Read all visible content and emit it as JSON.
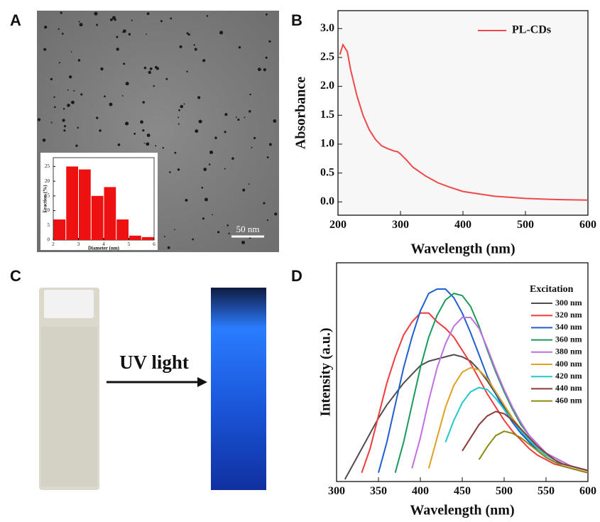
{
  "panel_labels": [
    "A",
    "B",
    "C",
    "D"
  ],
  "figure_texts": {
    "scale_bar": "50 nm",
    "arrow_label": "UV light"
  },
  "chart_data": [
    {
      "type": "histogram",
      "xlabel": "Diameter (nm)",
      "ylabel": "Fraction (%)",
      "bins": [
        2.0,
        2.5,
        3.0,
        3.5,
        4.0,
        4.5,
        5.0,
        5.5,
        6.0
      ],
      "values": [
        7,
        25,
        24,
        15,
        18,
        7,
        1.5,
        1
      ],
      "color": "#ee1111",
      "xlim": [
        2,
        6
      ],
      "xticks": [
        2,
        3,
        4,
        5,
        6
      ],
      "ylim": [
        0,
        28
      ],
      "yticks": [
        0,
        5,
        10,
        15,
        20,
        25
      ]
    },
    {
      "type": "line",
      "xlabel": "Wavelength (nm)",
      "ylabel": "Absorbance",
      "x": [
        203,
        208,
        215,
        220,
        230,
        240,
        250,
        260,
        270,
        280,
        290,
        295,
        300,
        310,
        320,
        340,
        360,
        380,
        400,
        450,
        500,
        550,
        600
      ],
      "series": [
        {
          "name": "PL-CDs",
          "color": "#f04848",
          "values": [
            2.55,
            2.72,
            2.6,
            2.3,
            1.85,
            1.5,
            1.25,
            1.08,
            0.97,
            0.92,
            0.88,
            0.87,
            0.83,
            0.72,
            0.6,
            0.45,
            0.33,
            0.25,
            0.18,
            0.1,
            0.06,
            0.04,
            0.03
          ]
        }
      ],
      "xlim": [
        200,
        600
      ],
      "xticks": [
        200,
        300,
        400,
        500,
        600
      ],
      "ylim": [
        -0.23,
        3.31
      ],
      "yticks": [
        {
          "value": 0,
          "label": "0.0"
        },
        0.5,
        {
          "value": 1,
          "label": "1.0"
        },
        1.5,
        {
          "value": 2,
          "label": "2.0"
        },
        2.5,
        {
          "value": 3,
          "label": "3.0"
        }
      ],
      "legend": "upper right"
    },
    {
      "type": "line",
      "xlabel": "Wavelength (nm)",
      "ylabel": "Intensity (a.u.)",
      "legend_title": "Excitation",
      "x": [
        310,
        320,
        330,
        340,
        350,
        360,
        370,
        380,
        390,
        400,
        410,
        420,
        430,
        440,
        450,
        460,
        470,
        480,
        490,
        500,
        510,
        520,
        530,
        540,
        550,
        560,
        570,
        580,
        590,
        600
      ],
      "series": [
        {
          "name": "300 nm",
          "color": "#4d4d4d",
          "values": [
            1,
            8,
            15,
            22,
            29,
            35,
            40,
            45,
            49,
            53,
            55,
            56,
            57,
            58,
            57,
            55,
            51,
            46,
            40,
            34,
            28,
            23,
            18,
            15,
            12,
            10,
            8,
            7,
            6,
            5
          ]
        },
        {
          "name": "320 nm",
          "color": "#f03c3c",
          "values": [
            null,
            null,
            4,
            15,
            30,
            45,
            57,
            67,
            73,
            77,
            77,
            73,
            70,
            66,
            60,
            54,
            47,
            40,
            34,
            28,
            23,
            19,
            15,
            12,
            10,
            8,
            7,
            6,
            5,
            4
          ]
        },
        {
          "name": "340 nm",
          "color": "#1f5fd0",
          "values": [
            null,
            null,
            null,
            null,
            4,
            18,
            35,
            52,
            66,
            78,
            86,
            88,
            88,
            84,
            77,
            68,
            58,
            48,
            40,
            33,
            27,
            22,
            18,
            14,
            11,
            9,
            8,
            7,
            6,
            5
          ]
        },
        {
          "name": "360 nm",
          "color": "#1a9a5a",
          "values": [
            null,
            null,
            null,
            null,
            null,
            null,
            4,
            18,
            35,
            52,
            66,
            76,
            83,
            86,
            85,
            80,
            71,
            60,
            50,
            41,
            33,
            26,
            21,
            17,
            13,
            11,
            9,
            7,
            6,
            5
          ]
        },
        {
          "name": "380 nm",
          "color": "#c070e0",
          "values": [
            null,
            null,
            null,
            null,
            null,
            null,
            null,
            null,
            6,
            20,
            37,
            52,
            63,
            71,
            75,
            75,
            70,
            61,
            51,
            42,
            34,
            27,
            21,
            17,
            13,
            11,
            9,
            7,
            6,
            5
          ]
        },
        {
          "name": "400 nm",
          "color": "#e0a020",
          "values": [
            null,
            null,
            null,
            null,
            null,
            null,
            null,
            null,
            null,
            null,
            6,
            20,
            34,
            44,
            50,
            52,
            51,
            47,
            41,
            35,
            29,
            24,
            19,
            16,
            12,
            10,
            8,
            7,
            6,
            5
          ]
        },
        {
          "name": "420 nm",
          "color": "#20c8d0",
          "values": [
            null,
            null,
            null,
            null,
            null,
            null,
            null,
            null,
            null,
            null,
            null,
            null,
            18,
            28,
            36,
            41,
            43,
            42,
            38,
            33,
            28,
            23,
            19,
            15,
            12,
            10,
            8,
            7,
            6,
            5
          ]
        },
        {
          "name": "440 nm",
          "color": "#8b3a3a",
          "values": [
            null,
            null,
            null,
            null,
            null,
            null,
            null,
            null,
            null,
            null,
            null,
            null,
            null,
            null,
            14,
            20,
            26,
            30,
            32,
            31,
            28,
            24,
            20,
            16,
            13,
            10,
            8,
            7,
            6,
            5
          ]
        },
        {
          "name": "460 nm",
          "color": "#8a8a10",
          "values": [
            null,
            null,
            null,
            null,
            null,
            null,
            null,
            null,
            null,
            null,
            null,
            null,
            null,
            null,
            null,
            null,
            10,
            16,
            21,
            23,
            22,
            20,
            17,
            14,
            11,
            9,
            7,
            6,
            5,
            4
          ]
        }
      ],
      "xlim": [
        300,
        600
      ],
      "xticks": [
        300,
        350,
        400,
        450,
        500,
        550,
        600
      ],
      "ylim": [
        0,
        100
      ],
      "legend": "upper right"
    }
  ]
}
